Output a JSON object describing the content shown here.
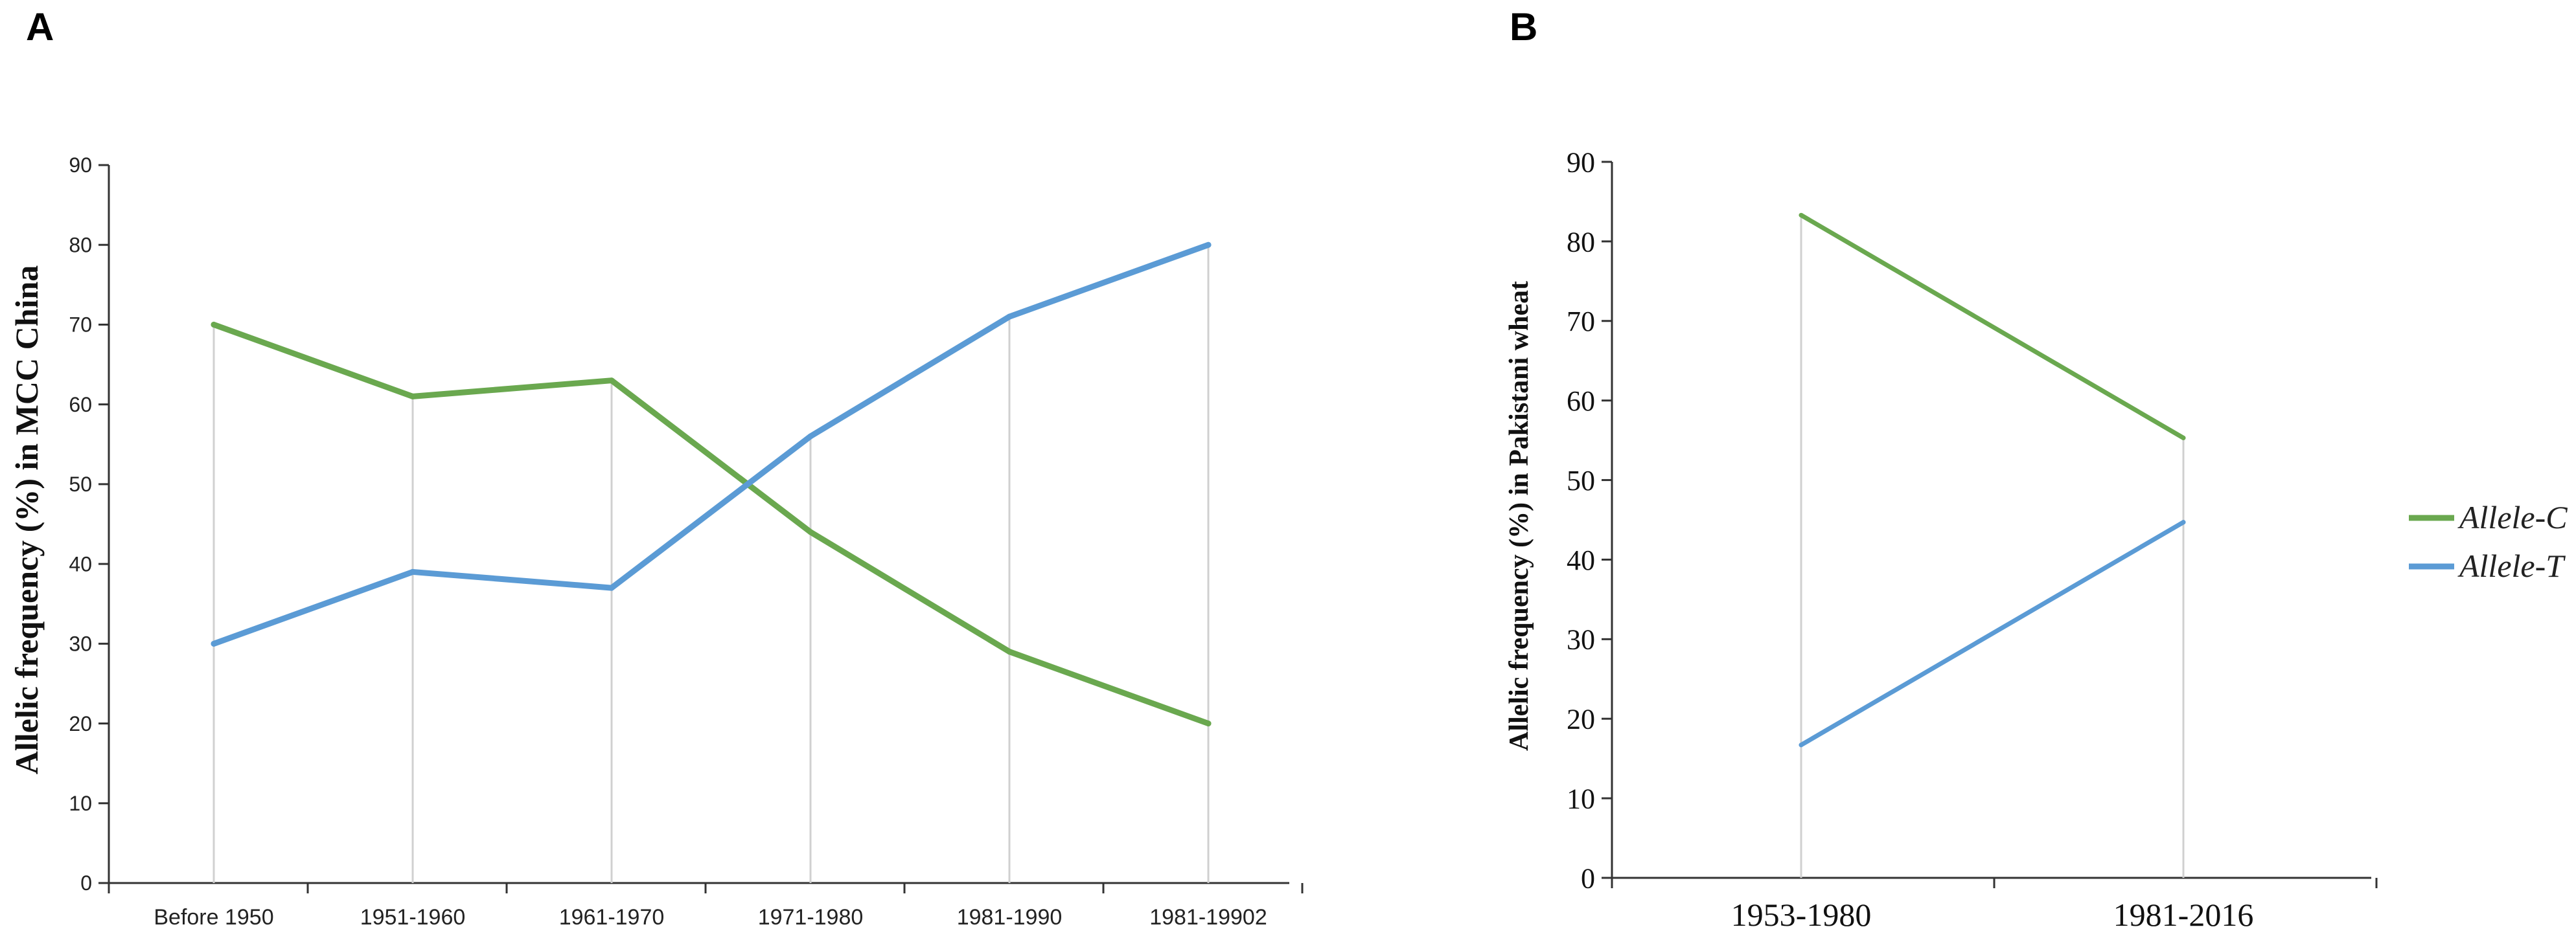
{
  "panels": {
    "a": {
      "letter": "A"
    },
    "b": {
      "letter": "B"
    }
  },
  "legend": {
    "items": [
      {
        "label": "Allele-C",
        "color": "#6aa84f"
      },
      {
        "label": "Allele-T",
        "color": "#5b9bd5"
      }
    ],
    "placement": "right"
  },
  "chart_data": [
    {
      "type": "line",
      "ylabel": "Allelic frequency (%) in MCC China",
      "xlabel": "",
      "categories": [
        "Before 1950",
        "1951-1960",
        "1961-1970",
        "1971-1980",
        "1981-1990",
        "1981-19902"
      ],
      "ylim": [
        0,
        90
      ],
      "yticks": [
        0,
        10,
        20,
        30,
        40,
        50,
        60,
        70,
        80,
        90
      ],
      "vertical_gridlines": true,
      "series": [
        {
          "name": "Allele-C",
          "color": "#6aa84f",
          "values": [
            70,
            61,
            63,
            44,
            29,
            20
          ]
        },
        {
          "name": "Allele-T",
          "color": "#5b9bd5",
          "values": [
            30,
            39,
            37,
            56,
            71,
            80
          ]
        }
      ]
    },
    {
      "type": "line",
      "ylabel": "Allelic frequency (%) in Pakistani wheat",
      "xlabel": "",
      "categories": [
        "1953-1980",
        "1981-2016"
      ],
      "ylim": [
        0,
        90
      ],
      "yticks": [
        0,
        10,
        20,
        30,
        40,
        50,
        60,
        70,
        80,
        90
      ],
      "vertical_gridlines": true,
      "series": [
        {
          "name": "Allele-C",
          "color": "#6aa84f",
          "values": [
            83.3,
            55.3
          ]
        },
        {
          "name": "Allele-T",
          "color": "#5b9bd5",
          "values": [
            16.7,
            44.7
          ]
        }
      ]
    }
  ]
}
